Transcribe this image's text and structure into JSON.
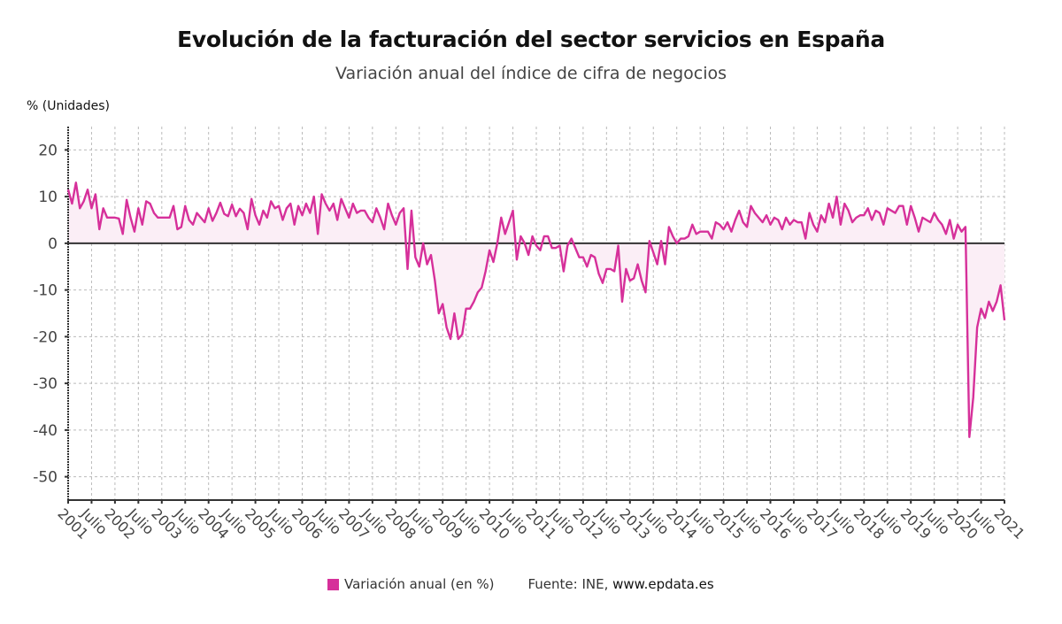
{
  "header": {
    "title": "Evolución de la facturación del sector servicios en España",
    "subtitle": "Variación anual del índice de cifra de negocios",
    "unit_label": "% (Unidades)"
  },
  "legend": {
    "series_label": "Variación anual (en %)",
    "source_prefix": "Fuente: INE,",
    "source_site": "www.epdata.es"
  },
  "colors": {
    "line": "#d6309a",
    "fill": "#fbeef6",
    "zero_line": "#333333",
    "grid": "#bbbbbb",
    "axis": "#333333"
  },
  "chart_data": {
    "type": "line",
    "title": "Evolución de la facturación del sector servicios en España",
    "subtitle": "Variación anual del índice de cifra de negocios",
    "xlabel": "",
    "ylabel": "% (Unidades)",
    "ylim": [
      -55,
      25
    ],
    "yticks": [
      20,
      10,
      0,
      -10,
      -20,
      -30,
      -40,
      -50
    ],
    "grid": true,
    "legend_position": "bottom",
    "start": "2001-01",
    "frequency": "monthly",
    "xtick_labels": [
      "2001",
      "Julio",
      "2002",
      "Julio",
      "2003",
      "Julio",
      "2004",
      "Julio",
      "2005",
      "Julio",
      "2006",
      "Julio",
      "2007",
      "Julio",
      "2008",
      "Julio",
      "2009",
      "Julio",
      "2010",
      "Julio",
      "2011",
      "Julio",
      "2012",
      "Julio",
      "2013",
      "Julio",
      "2014",
      "Julio",
      "2015",
      "Julio",
      "2016",
      "Julio",
      "2017",
      "Julio",
      "2018",
      "Julio",
      "2019",
      "Julio",
      "2020",
      "Julio",
      "2021"
    ],
    "series": [
      {
        "name": "Variación anual (en %)",
        "values": [
          11.5,
          8.5,
          13,
          7.5,
          9,
          11.5,
          7.5,
          10.5,
          3,
          7.5,
          5.5,
          5.5,
          5.5,
          5.3,
          2,
          9.3,
          5.5,
          2.5,
          7.5,
          4,
          9,
          8.5,
          6.5,
          5.5,
          5.5,
          5.5,
          5.5,
          8,
          3,
          3.5,
          8,
          5,
          4,
          6.5,
          5.5,
          4.5,
          7.5,
          4.8,
          6.5,
          8.7,
          6.3,
          5.8,
          8.3,
          5.8,
          7.4,
          6.5,
          3,
          9.5,
          6,
          4,
          7,
          5.5,
          9,
          7.5,
          8,
          5,
          7.5,
          8.5,
          4,
          8,
          6,
          8.5,
          6.5,
          10,
          2,
          10.5,
          8.5,
          7,
          8.5,
          5,
          9.5,
          7.5,
          5.5,
          8.5,
          6.5,
          7,
          7,
          5.5,
          4.5,
          7.5,
          5.5,
          3,
          8.5,
          6,
          4,
          6.5,
          7.5,
          -5.5,
          7,
          -3,
          -5,
          0,
          -4.5,
          -2.5,
          -8,
          -15,
          -13,
          -18,
          -20.5,
          -15,
          -20.5,
          -19.5,
          -14,
          -14,
          -12.5,
          -10.5,
          -9.5,
          -6,
          -1.5,
          -4,
          0,
          5.5,
          2,
          4.5,
          7,
          -3.5,
          1.5,
          0,
          -2.5,
          1.5,
          -0.5,
          -1.5,
          1.5,
          1.5,
          -1,
          -1,
          -0.5,
          -6,
          -0.5,
          1,
          -1,
          -3,
          -3,
          -5,
          -2.5,
          -3,
          -6.5,
          -8.5,
          -5.5,
          -5.5,
          -6,
          -0.5,
          -12.5,
          -5.5,
          -8,
          -7.5,
          -4.5,
          -8,
          -10.5,
          0.5,
          -2,
          -4.5,
          0.5,
          -4.5,
          3.5,
          1.5,
          0,
          1,
          1,
          1.5,
          4,
          2,
          2.5,
          2.5,
          2.5,
          1,
          4.5,
          4,
          3,
          4.5,
          2.5,
          5,
          7,
          4.5,
          3.5,
          8,
          6.5,
          5.5,
          4.5,
          6,
          4,
          5.5,
          5,
          3,
          5.5,
          4,
          5,
          4.5,
          4.5,
          1,
          6.5,
          4,
          2.5,
          6,
          4.5,
          8.5,
          5.5,
          10,
          4,
          8.5,
          7,
          4.5,
          5.5,
          6,
          6,
          7.5,
          5,
          7,
          6.5,
          4,
          7.5,
          7,
          6.5,
          8,
          8,
          4,
          8,
          5.5,
          2.5,
          5.5,
          5,
          4.5,
          6.5,
          5,
          4,
          2,
          5,
          1,
          4,
          2.5,
          3.5,
          -41.5,
          -33,
          -18,
          -14,
          -16,
          -12.5,
          -14.5,
          -12.5,
          -9,
          -16.5
        ]
      }
    ]
  }
}
